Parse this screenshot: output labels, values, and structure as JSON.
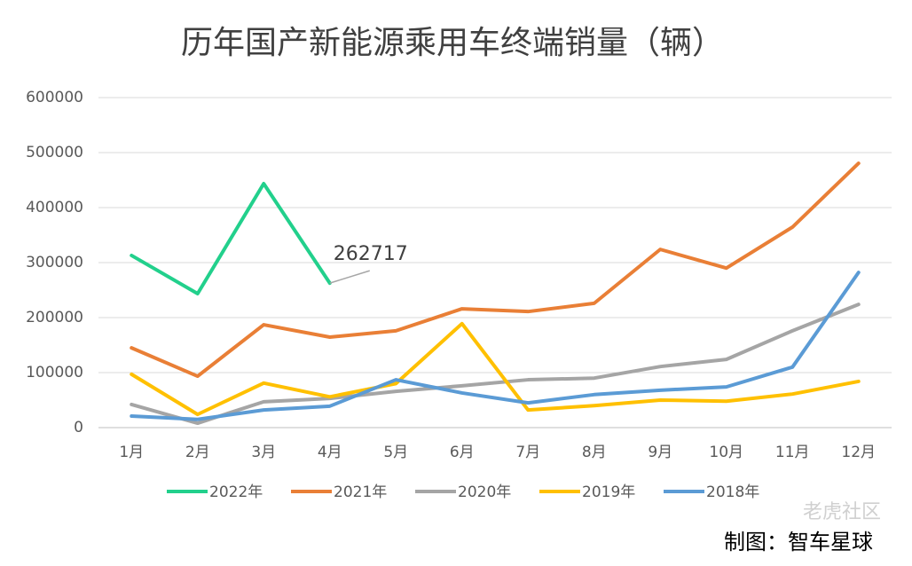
{
  "chart_data": {
    "type": "line",
    "title": "历年国产新能源乘用车终端销量（辆）",
    "categories": [
      "1月",
      "2月",
      "3月",
      "4月",
      "5月",
      "6月",
      "7月",
      "8月",
      "9月",
      "10月",
      "11月",
      "12月"
    ],
    "series": [
      {
        "name": "2022年",
        "color": "#22d08c",
        "values": [
          313000,
          243500,
          443500,
          262717,
          null,
          null,
          null,
          null,
          null,
          null,
          null,
          null
        ]
      },
      {
        "name": "2021年",
        "color": "#e97f36",
        "values": [
          145000,
          93500,
          187000,
          164500,
          176000,
          216000,
          211000,
          226000,
          324000,
          290000,
          364500,
          480500
        ]
      },
      {
        "name": "2020年",
        "color": "#a5a5a5",
        "values": [
          42000,
          8000,
          47000,
          53000,
          66000,
          76000,
          87000,
          90000,
          111000,
          124000,
          176000,
          224000
        ]
      },
      {
        "name": "2019年",
        "color": "#ffc000",
        "values": [
          97000,
          24000,
          81000,
          56000,
          80000,
          189000,
          32000,
          40000,
          50000,
          48000,
          61000,
          84000
        ]
      },
      {
        "name": "2018年",
        "color": "#5b9bd5",
        "values": [
          21000,
          15000,
          32000,
          39000,
          87000,
          63000,
          45000,
          60000,
          68000,
          74000,
          110000,
          282000
        ]
      }
    ],
    "ylim": [
      0,
      600000
    ],
    "yticks": [
      0,
      100000,
      200000,
      300000,
      400000,
      500000,
      600000
    ],
    "grid": true,
    "credit": "制图：智车星球",
    "watermark": "老虎社区"
  }
}
